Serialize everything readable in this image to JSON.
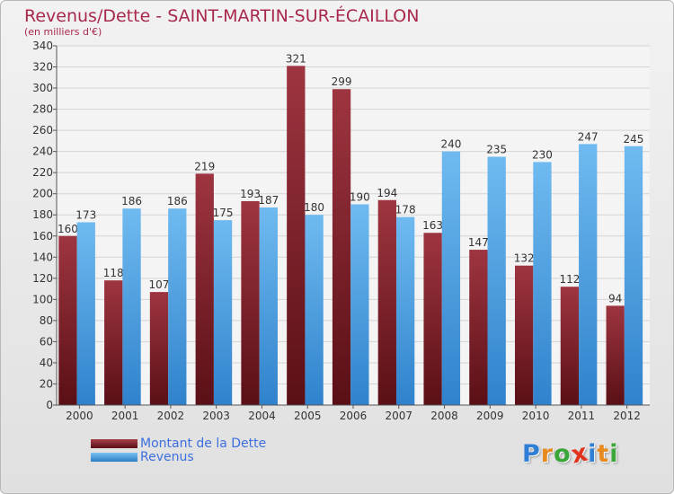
{
  "chart_data": {
    "type": "bar",
    "title": "Revenus/Dette - SAINT-MARTIN-SUR-ÉCAILLON",
    "subtitle": "(en milliers d'€)",
    "categories": [
      "2000",
      "2001",
      "2002",
      "2003",
      "2004",
      "2005",
      "2006",
      "2007",
      "2008",
      "2009",
      "2010",
      "2011",
      "2012"
    ],
    "series": [
      {
        "name": "Montant de la Dette",
        "color": "#7a1c24",
        "values": [
          160,
          118,
          107,
          219,
          193,
          321,
          299,
          194,
          163,
          147,
          132,
          112,
          94
        ]
      },
      {
        "name": "Revenus",
        "color": "#4ea6e6",
        "values": [
          173,
          186,
          186,
          175,
          187,
          180,
          190,
          178,
          240,
          235,
          230,
          247,
          245
        ]
      }
    ],
    "ylim": [
      0,
      340
    ],
    "ytick_step": 20,
    "grid": true,
    "legend": "bottom-left",
    "xlabel": "",
    "ylabel": ""
  },
  "logo": {
    "letters": [
      "P",
      "r",
      "o",
      "x",
      "i",
      "t",
      "i"
    ],
    "colors": [
      "#2f7fd6",
      "#e88a1e",
      "#3aa63a",
      "#e0321c",
      "#2f7fd6",
      "#e88a1e",
      "#3aa63a"
    ]
  }
}
